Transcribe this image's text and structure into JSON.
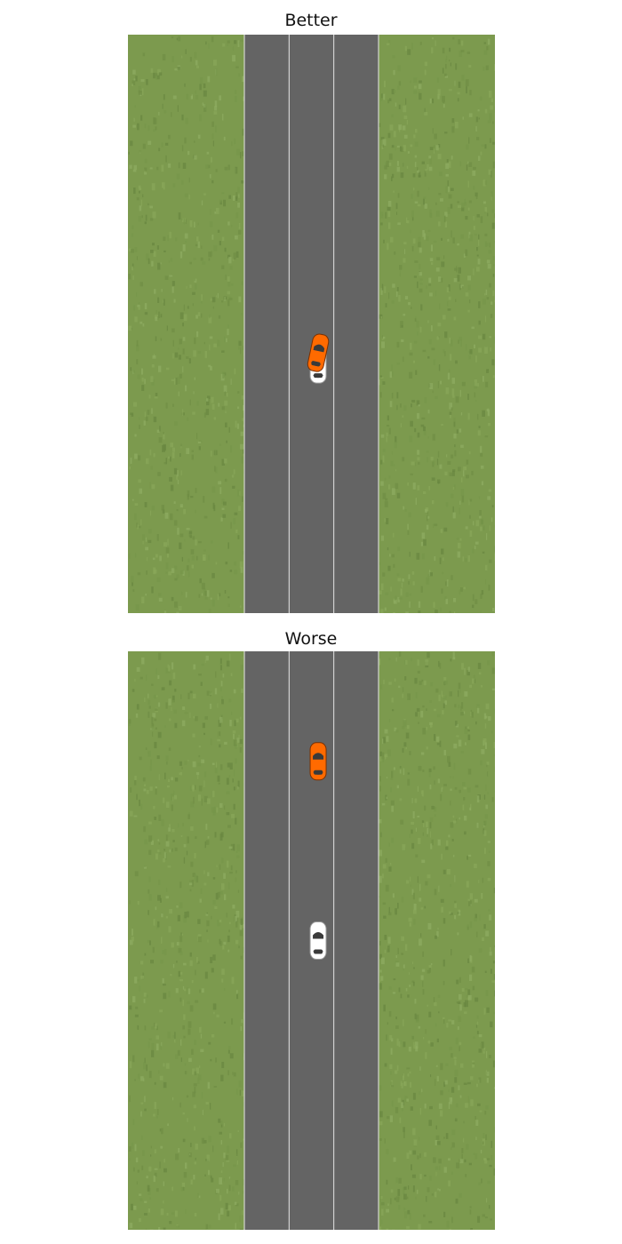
{
  "panels": [
    {
      "title": "Better",
      "scene": {
        "lanes": 3,
        "ego_car": {
          "color": "#ff6a00",
          "lane": 2,
          "position_along_road": 0.55,
          "heading_deg": 12
        },
        "other_car": {
          "color": "#ffffff",
          "lane": 2,
          "position_along_road": 0.57,
          "heading_deg": 0
        }
      }
    },
    {
      "title": "Worse",
      "scene": {
        "lanes": 3,
        "ego_car": {
          "color": "#ff6a00",
          "lane": 2,
          "position_along_road": 0.19,
          "heading_deg": 0
        },
        "other_car": {
          "color": "#ffffff",
          "lane": 2,
          "position_along_road": 0.5,
          "heading_deg": 0
        }
      }
    }
  ],
  "colors": {
    "grass": "#7c9a4e",
    "road": "#646464",
    "lane_line": "#e6e6e6",
    "car_window": "#3a3a3a"
  }
}
